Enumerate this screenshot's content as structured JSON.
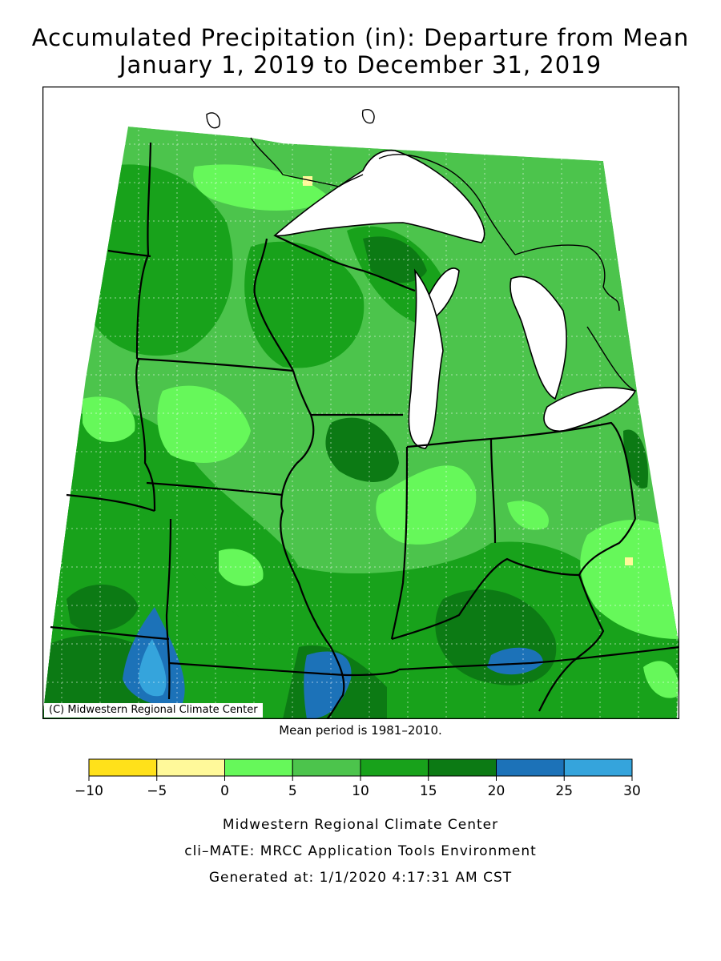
{
  "title_line1": "Accumulated Precipitation (in): Departure from Mean",
  "title_line2": "January 1, 2019 to December 31, 2019",
  "map_credit": "(C) Midwestern Regional Climate Center",
  "mean_period": "Mean period is 1981–2010.",
  "legend": {
    "ticks": [
      "−10",
      "−5",
      "0",
      "5",
      "10",
      "15",
      "20",
      "25",
      "30"
    ],
    "bins": [
      {
        "from": -10,
        "to": -5,
        "color": "#ffe11a"
      },
      {
        "from": -5,
        "to": 0,
        "color": "#fff99a"
      },
      {
        "from": 0,
        "to": 5,
        "color": "#66f85a"
      },
      {
        "from": 5,
        "to": 10,
        "color": "#4cc44c"
      },
      {
        "from": 10,
        "to": 15,
        "color": "#18a21b"
      },
      {
        "from": 15,
        "to": 20,
        "color": "#0c7a14"
      },
      {
        "from": 20,
        "to": 25,
        "color": "#1c72b8"
      },
      {
        "from": 25,
        "to": 30,
        "color": "#35a4dc"
      }
    ]
  },
  "footer": {
    "line1": "Midwestern Regional Climate Center",
    "line2": "cli–MATE: MRCC Application Tools Environment",
    "line3": "Generated at: 1/1/2020 4:17:31 AM CST"
  }
}
